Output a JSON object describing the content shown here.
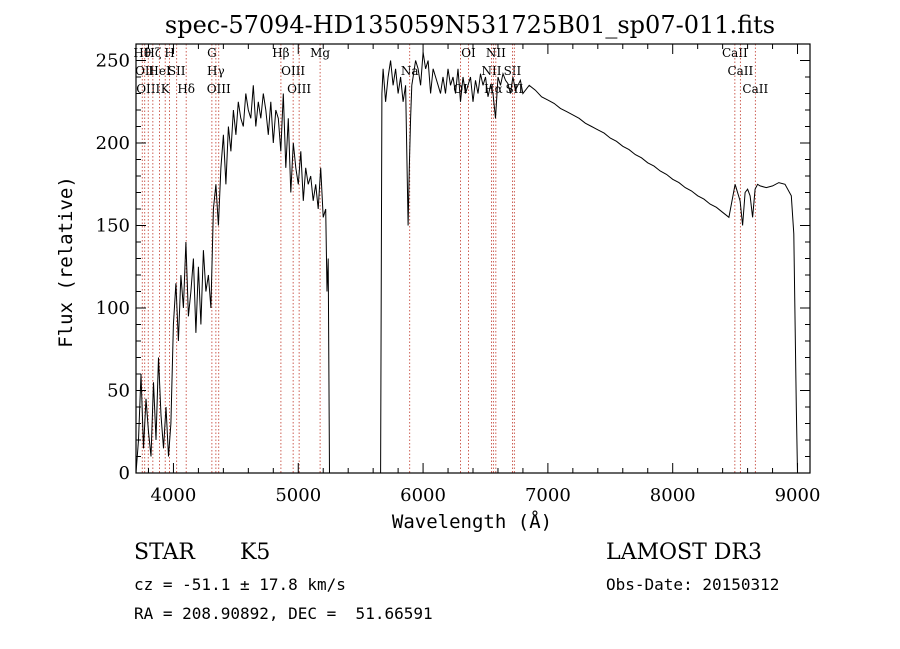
{
  "chart_data": {
    "type": "line",
    "title": "spec-57094-HD135059N531725B01_sp07-011.fits",
    "xlabel": "Wavelength (Å)",
    "ylabel": "Flux (relative)",
    "xlim": [
      3700,
      9100
    ],
    "ylim": [
      0,
      260
    ],
    "xticks": [
      4000,
      5000,
      6000,
      7000,
      8000,
      9000
    ],
    "yticks": [
      0,
      50,
      100,
      150,
      200,
      250
    ],
    "series": [
      {
        "name": "flux",
        "x": [
          3700,
          3720,
          3740,
          3760,
          3780,
          3800,
          3820,
          3840,
          3860,
          3880,
          3900,
          3920,
          3940,
          3960,
          3980,
          4000,
          4020,
          4040,
          4060,
          4080,
          4100,
          4120,
          4140,
          4160,
          4180,
          4200,
          4220,
          4240,
          4260,
          4280,
          4300,
          4320,
          4340,
          4360,
          4380,
          4400,
          4420,
          4440,
          4460,
          4480,
          4500,
          4520,
          4540,
          4560,
          4580,
          4600,
          4620,
          4640,
          4660,
          4680,
          4700,
          4720,
          4740,
          4760,
          4780,
          4800,
          4820,
          4840,
          4860,
          4880,
          4900,
          4920,
          4940,
          4960,
          4980,
          5000,
          5020,
          5040,
          5060,
          5080,
          5100,
          5120,
          5140,
          5160,
          5180,
          5200,
          5220,
          5230,
          5240,
          5250,
          5660,
          5670,
          5680,
          5700,
          5720,
          5740,
          5760,
          5780,
          5800,
          5820,
          5840,
          5860,
          5880,
          5890,
          5900,
          5910,
          5920,
          5940,
          5960,
          5980,
          6000,
          6020,
          6040,
          6060,
          6080,
          6100,
          6120,
          6140,
          6160,
          6180,
          6200,
          6220,
          6240,
          6260,
          6280,
          6300,
          6320,
          6340,
          6360,
          6380,
          6400,
          6420,
          6440,
          6460,
          6480,
          6500,
          6520,
          6540,
          6560,
          6580,
          6600,
          6620,
          6640,
          6660,
          6680,
          6700,
          6720,
          6740,
          6760,
          6780,
          6800,
          6850,
          6900,
          6950,
          7000,
          7050,
          7100,
          7150,
          7200,
          7250,
          7300,
          7350,
          7400,
          7450,
          7500,
          7550,
          7600,
          7650,
          7700,
          7750,
          7800,
          7850,
          7900,
          7950,
          8000,
          8050,
          8100,
          8150,
          8200,
          8250,
          8300,
          8350,
          8400,
          8450,
          8500,
          8540,
          8560,
          8580,
          8600,
          8620,
          8640,
          8660,
          8680,
          8700,
          8750,
          8800,
          8850,
          8900,
          8950,
          8970,
          8990,
          9000
        ],
        "y": [
          0,
          20,
          60,
          15,
          45,
          25,
          10,
          55,
          20,
          70,
          35,
          15,
          40,
          10,
          30,
          90,
          115,
          80,
          120,
          100,
          140,
          95,
          110,
          130,
          85,
          125,
          90,
          135,
          110,
          120,
          100,
          160,
          175,
          150,
          185,
          205,
          175,
          210,
          195,
          220,
          205,
          225,
          215,
          210,
          230,
          220,
          215,
          235,
          210,
          225,
          215,
          230,
          220,
          205,
          225,
          200,
          220,
          215,
          195,
          230,
          185,
          215,
          170,
          200,
          185,
          175,
          195,
          165,
          185,
          175,
          180,
          165,
          175,
          160,
          185,
          155,
          160,
          110,
          130,
          0,
          0,
          230,
          245,
          225,
          240,
          250,
          235,
          245,
          230,
          240,
          225,
          235,
          150,
          185,
          215,
          235,
          240,
          250,
          245,
          235,
          255,
          245,
          250,
          230,
          245,
          240,
          235,
          230,
          240,
          230,
          245,
          235,
          240,
          230,
          245,
          225,
          240,
          230,
          235,
          240,
          225,
          238,
          230,
          242,
          235,
          240,
          228,
          235,
          230,
          215,
          240,
          235,
          242,
          238,
          236,
          230,
          240,
          232,
          235,
          238,
          230,
          235,
          232,
          228,
          226,
          224,
          221,
          219,
          217,
          215,
          212,
          210,
          208,
          206,
          203,
          201,
          198,
          196,
          193,
          191,
          188,
          186,
          183,
          181,
          178,
          176,
          173,
          171,
          168,
          166,
          163,
          161,
          158,
          155,
          175,
          165,
          150,
          170,
          172,
          168,
          155,
          172,
          175,
          174,
          173,
          174,
          176,
          175,
          168,
          145,
          40,
          0
        ]
      }
    ],
    "lines": [
      {
        "x": 3750,
        "label": "Hθ"
      },
      {
        "x": 3770,
        "label": "OII"
      },
      {
        "x": 3798,
        "label": "OIII"
      },
      {
        "x": 3835,
        "label": "Hζ"
      },
      {
        "x": 3889,
        "label": "HeI"
      },
      {
        "x": 3934,
        "label": "K"
      },
      {
        "x": 3969,
        "label": "H"
      },
      {
        "x": 4026,
        "label": "SII"
      },
      {
        "x": 4102,
        "label": "Hδ"
      },
      {
        "x": 4308,
        "label": "G"
      },
      {
        "x": 4340,
        "label": "Hγ"
      },
      {
        "x": 4363,
        "label": "OIII"
      },
      {
        "x": 4861,
        "label": "Hβ"
      },
      {
        "x": 4959,
        "label": "OIII"
      },
      {
        "x": 5007,
        "label": "OIII"
      },
      {
        "x": 5175,
        "label": "Mg"
      },
      {
        "x": 5893,
        "label": "Na"
      },
      {
        "x": 6300,
        "label": "OI"
      },
      {
        "x": 6364,
        "label": "OI"
      },
      {
        "x": 6548,
        "label": "NII"
      },
      {
        "x": 6563,
        "label": "Hα"
      },
      {
        "x": 6583,
        "label": "NII"
      },
      {
        "x": 6716,
        "label": "SII"
      },
      {
        "x": 6731,
        "label": "SII"
      },
      {
        "x": 8498,
        "label": "CaII"
      },
      {
        "x": 8542,
        "label": "CaII"
      },
      {
        "x": 8662,
        "label": "CaII"
      }
    ]
  },
  "info": {
    "object_class": "STAR",
    "subclass": "K5",
    "survey": "LAMOST DR3",
    "redshift": "cz = -51.1 ± 17.8 km/s",
    "obs_date": "Obs-Date: 20150312",
    "coords": "RA = 208.90892, DEC =  51.66591"
  }
}
